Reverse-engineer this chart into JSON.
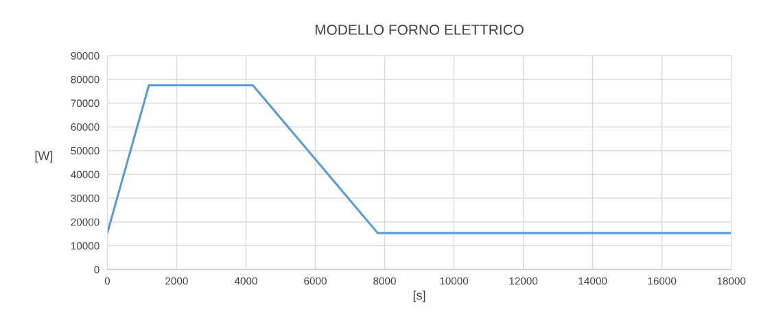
{
  "chart_data": {
    "type": "line",
    "title": "MODELLO FORNO ELETTRICO",
    "xlabel": "[s]",
    "ylabel": "[W]",
    "x": [
      0,
      1200,
      4200,
      7800,
      18000
    ],
    "series": [
      {
        "color": "#5b9bd5",
        "values": [
          15300,
          77500,
          77500,
          15300,
          15300
        ]
      }
    ],
    "xlim": [
      0,
      18000
    ],
    "xticks": [
      0,
      2000,
      4000,
      6000,
      8000,
      10000,
      12000,
      14000,
      16000,
      18000
    ],
    "ylim": [
      0,
      90000
    ],
    "yticks": [
      0,
      10000,
      20000,
      30000,
      40000,
      50000,
      60000,
      70000,
      80000,
      90000
    ],
    "grid": true,
    "line_style": "solid",
    "marker": "none"
  }
}
